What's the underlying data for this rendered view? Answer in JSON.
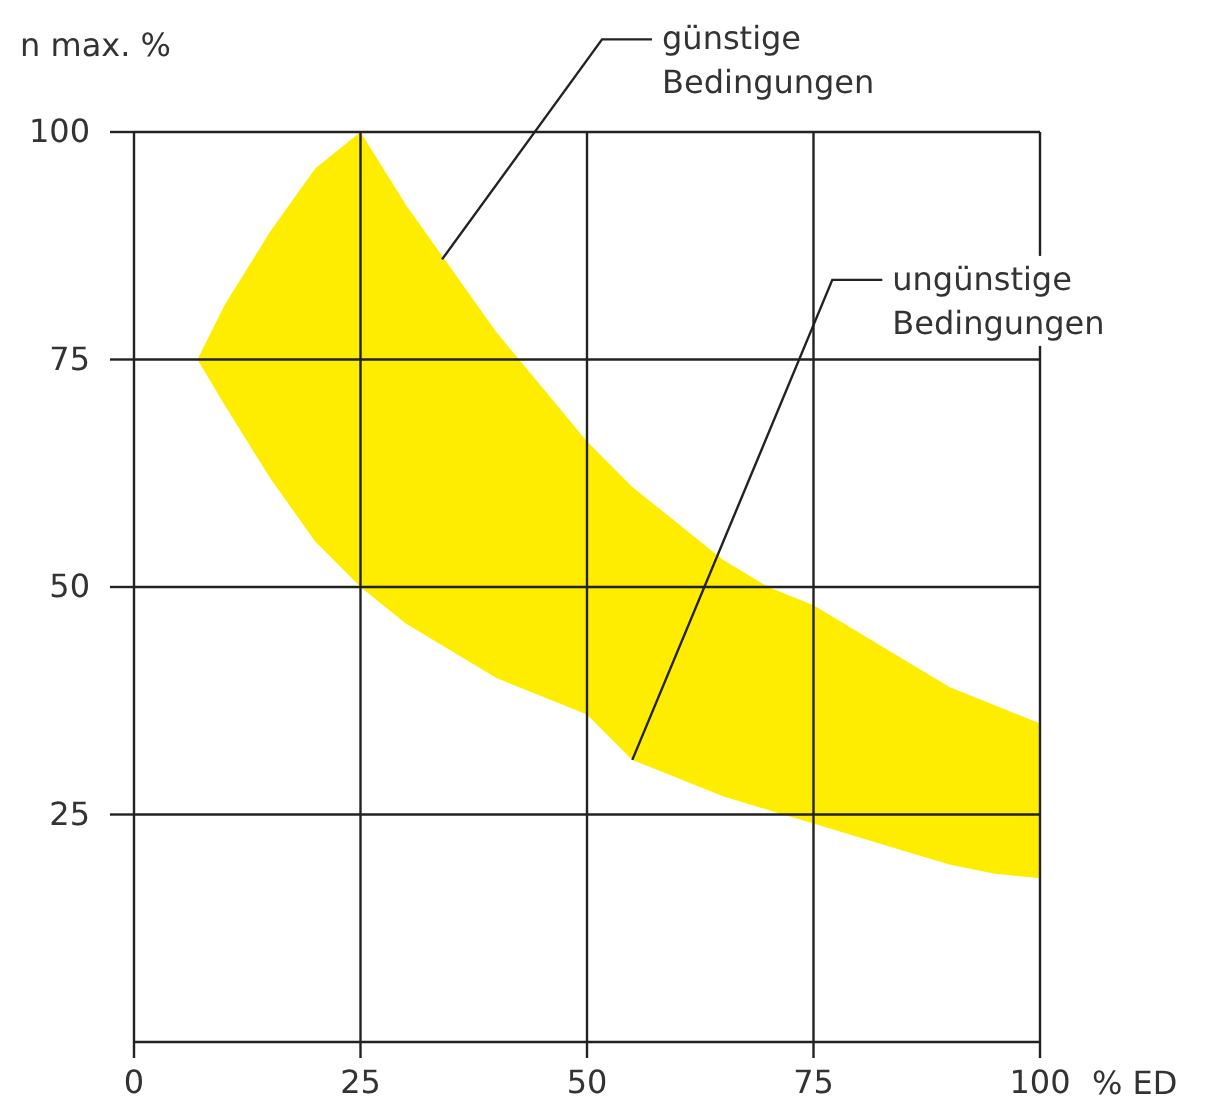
{
  "chart_data": {
    "type": "area",
    "xlabel": "% ED",
    "ylabel": "n max. %",
    "x": [
      7,
      10,
      15,
      20,
      25,
      30,
      35,
      40,
      45,
      50,
      55,
      60,
      65,
      70,
      75,
      80,
      85,
      90,
      95,
      100
    ],
    "series": [
      {
        "color": "#ffed00",
        "values": [
          null,
          null,
          null,
          null,
          null,
          null,
          null,
          null,
          null,
          null,
          null,
          null,
          null,
          null,
          null,
          null,
          null,
          null,
          null,
          null
        ],
        "lower": [
          75,
          70,
          62,
          55,
          50,
          46,
          43,
          40,
          38,
          36,
          31,
          29,
          27,
          25.5,
          24,
          22.5,
          21,
          19.5,
          18.5,
          18
        ],
        "upper": [
          75,
          81,
          89,
          96,
          100,
          92,
          85,
          78,
          72,
          66,
          61,
          57,
          53,
          50,
          48,
          45,
          42,
          39,
          37,
          35
        ]
      }
    ],
    "xlim": [
      0,
      100
    ],
    "ylim": [
      0,
      100
    ],
    "xticks": [
      0,
      25,
      50,
      75,
      100
    ],
    "yticks": [
      25,
      50,
      75,
      100
    ],
    "grid": true,
    "annotations": [
      {
        "text": "günstige\nBedingungen",
        "x": 34,
        "y": 86
      },
      {
        "text": "ungünstige\nBedingungen",
        "x": 55,
        "y": 31
      }
    ]
  }
}
